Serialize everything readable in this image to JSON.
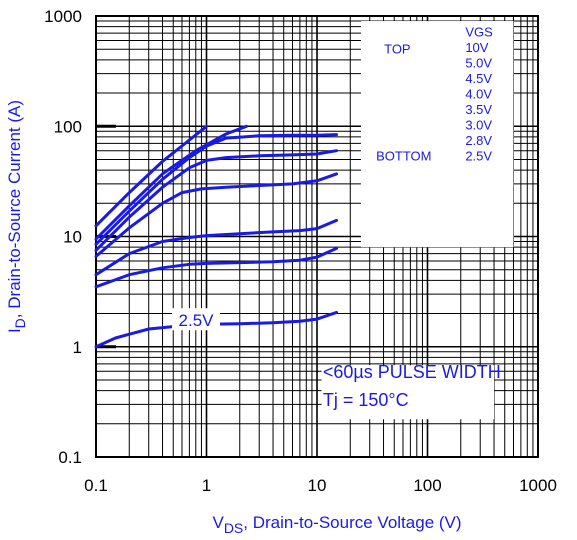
{
  "chart_data": {
    "type": "line",
    "title": "",
    "xlabel": "VDS, Drain-to-Source Voltage (V)",
    "xlabel_main": "V",
    "xlabel_sub": "DS",
    "xlabel_rest": ", Drain-to-Source Voltage (V)",
    "ylabel": "ID, Drain-to-Source Current (A)",
    "ylabel_main": "I",
    "ylabel_sub": "D",
    "ylabel_rest": ", Drain-to-Source Current (A)",
    "x_scale": "log",
    "y_scale": "log",
    "xlim": [
      0.1,
      1000
    ],
    "ylim": [
      0.1,
      1000
    ],
    "grid": true,
    "x_ticks": [
      {
        "value": 0.1,
        "label": "0.1"
      },
      {
        "value": 1,
        "label": "1"
      },
      {
        "value": 10,
        "label": "10"
      },
      {
        "value": 100,
        "label": "100"
      },
      {
        "value": 1000,
        "label": "1000"
      }
    ],
    "y_ticks": [
      {
        "value": 0.1,
        "label": "0.1"
      },
      {
        "value": 1,
        "label": "1"
      },
      {
        "value": 10,
        "label": "10"
      },
      {
        "value": 100,
        "label": "100"
      },
      {
        "value": 1000,
        "label": "1000"
      }
    ],
    "legend": {
      "placement": "top-right",
      "header": "VGS",
      "top_label": "TOP",
      "bottom_label": "BOTTOM",
      "entries": [
        "10V",
        "5.0V",
        "4.5V",
        "4.0V",
        "3.5V",
        "3.0V",
        "2.8V",
        "2.5V"
      ]
    },
    "annotations": [
      "<60µs PULSE WIDTH",
      "Tj = 150°C"
    ],
    "curve_label": "2.5V",
    "series": [
      {
        "vgs": "10V",
        "x": [
          0.1,
          0.2,
          0.4,
          0.7,
          1.0
        ],
        "y": [
          12.5,
          25,
          48,
          75,
          100
        ]
      },
      {
        "vgs": "5.0V",
        "x": [
          0.1,
          0.2,
          0.4,
          0.8,
          1.5,
          2.3
        ],
        "y": [
          9.5,
          19,
          37,
          60,
          85,
          100
        ]
      },
      {
        "vgs": "4.5V",
        "x": [
          0.1,
          0.2,
          0.4,
          0.7,
          1.0,
          1.5,
          3,
          6,
          10,
          15
        ],
        "y": [
          8.5,
          17,
          33,
          52,
          66,
          78,
          82,
          83,
          83,
          84
        ]
      },
      {
        "vgs": "4.0V",
        "x": [
          0.1,
          0.2,
          0.4,
          0.7,
          1.0,
          1.5,
          3,
          6,
          10,
          15
        ],
        "y": [
          7.5,
          15,
          28,
          42,
          49,
          52,
          54,
          55,
          56,
          60
        ]
      },
      {
        "vgs": "3.5V",
        "x": [
          0.1,
          0.2,
          0.4,
          0.6,
          0.9,
          1.5,
          3,
          6,
          10,
          15
        ],
        "y": [
          6.6,
          12,
          20,
          25,
          27,
          28,
          29,
          30,
          32,
          37
        ]
      },
      {
        "vgs": "3.0V",
        "x": [
          0.1,
          0.2,
          0.4,
          0.7,
          1.0,
          2,
          4,
          7,
          10,
          15
        ],
        "y": [
          4.5,
          7,
          9,
          9.8,
          10.2,
          10.6,
          11,
          11.3,
          11.8,
          14
        ]
      },
      {
        "vgs": "2.8V",
        "x": [
          0.1,
          0.2,
          0.4,
          0.7,
          1.0,
          2,
          4,
          7,
          10,
          15
        ],
        "y": [
          3.5,
          4.5,
          5.2,
          5.6,
          5.7,
          5.8,
          5.9,
          6.1,
          6.5,
          7.8
        ]
      },
      {
        "vgs": "2.5V",
        "x": [
          0.1,
          0.15,
          0.3,
          0.6,
          1.0,
          2,
          4,
          7,
          10,
          15
        ],
        "y": [
          1.0,
          1.2,
          1.45,
          1.55,
          1.6,
          1.62,
          1.65,
          1.7,
          1.78,
          2.05
        ]
      }
    ],
    "colors": {
      "curve": "#1a1ae6",
      "grid": "#000000",
      "axis_text": "#000000",
      "label_text": "#1a1ae6"
    }
  }
}
